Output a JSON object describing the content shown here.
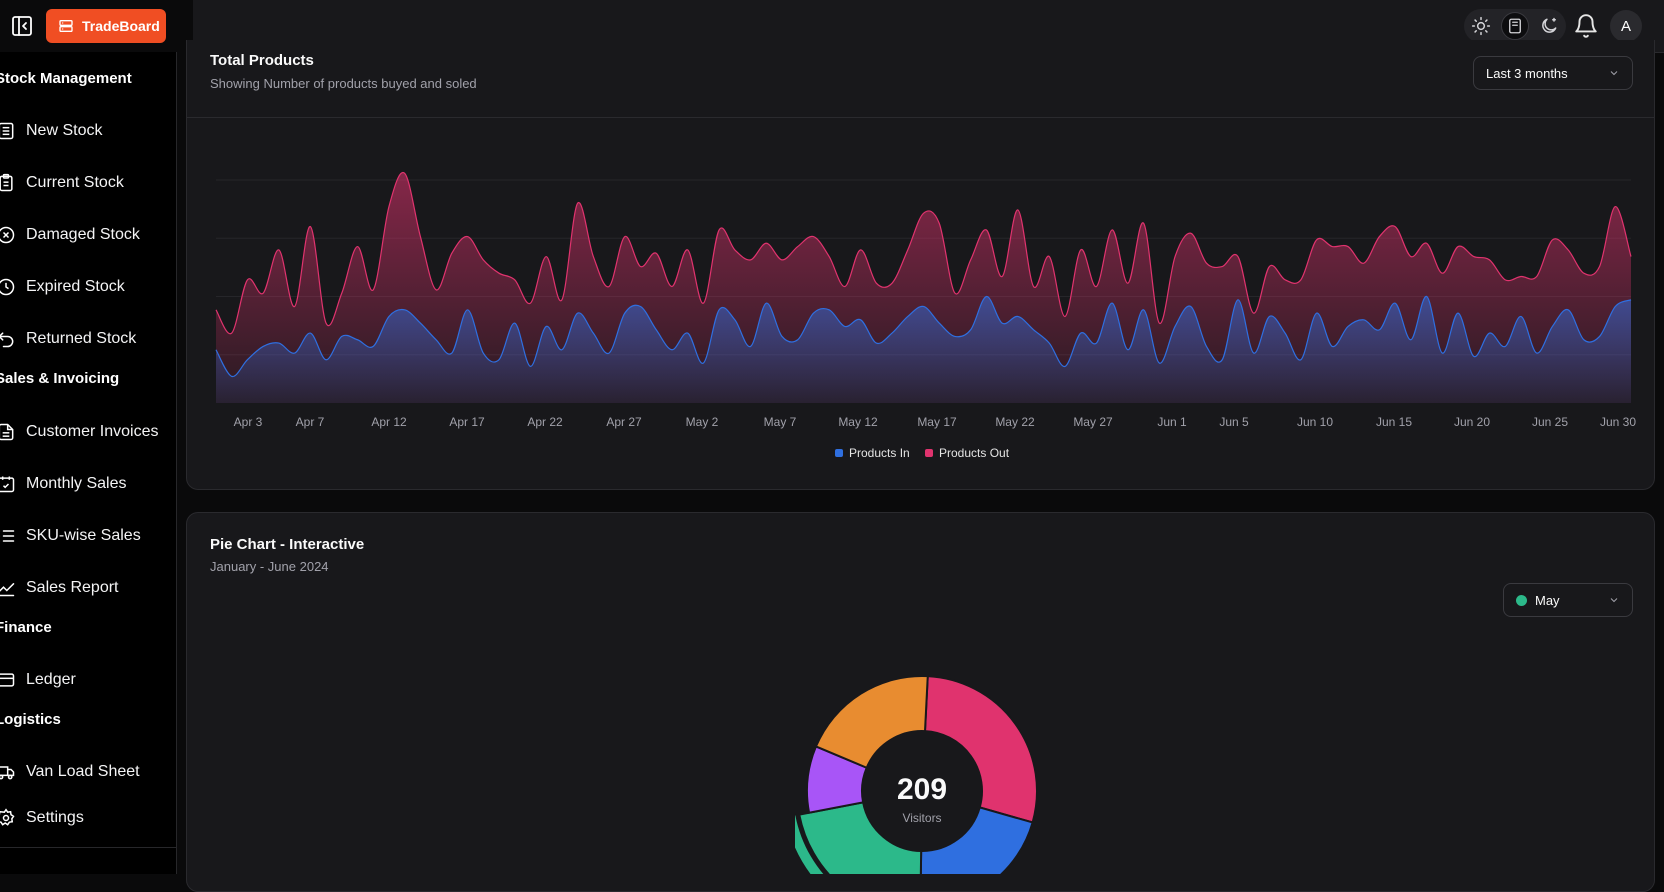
{
  "app": {
    "brand": "TradeBoard",
    "avatar_initial": "A"
  },
  "icons": [
    "sidebar-toggle-icon",
    "store-icon",
    "sun-icon",
    "book-icon",
    "moon-icon",
    "bell-icon",
    "receipt-icon",
    "clipboard-icon",
    "x-circle-icon",
    "clock-icon",
    "undo-icon",
    "file-icon",
    "calendar-check-icon",
    "list-icon",
    "trend-icon",
    "wallet-icon",
    "truck-icon",
    "gear-icon",
    "chevron-down-icon"
  ],
  "colors": {
    "brand": "#f04e23",
    "products_in": "#2f6fe0",
    "products_out": "#e0336e",
    "background": "#0a0a0b",
    "card": "#18181b"
  },
  "sidebar": {
    "sections": [
      {
        "heading": "Stock Management",
        "items": [
          "New Stock",
          "Current Stock",
          "Damaged Stock",
          "Expired Stock",
          "Returned Stock"
        ]
      },
      {
        "heading": "Sales & Invoicing",
        "items": [
          "Customer Invoices",
          "Monthly Sales",
          "SKU-wise Sales",
          "Sales Report"
        ]
      },
      {
        "heading": "Finance",
        "items": [
          "Ledger"
        ]
      },
      {
        "heading": "Logistics",
        "items": [
          "Van Load Sheet"
        ]
      }
    ],
    "settings": "Settings"
  },
  "area_card": {
    "title": "Total Products",
    "subtitle": "Showing Number of products buyed and soled",
    "range_select": "Last 3 months"
  },
  "pie_card": {
    "title": "Pie Chart - Interactive",
    "subtitle": "January - June 2024",
    "month_select": "May",
    "month_dot_color": "#2cb98a",
    "center_value": "209",
    "center_label": "Visitors"
  },
  "chart_data": [
    {
      "type": "area",
      "title": "Total Products",
      "x_ticks": [
        "Apr 3",
        "Apr 7",
        "Apr 12",
        "Apr 17",
        "Apr 22",
        "Apr 27",
        "May 2",
        "May 7",
        "May 12",
        "May 17",
        "May 22",
        "May 27",
        "Jun 1",
        "Jun 5",
        "Jun 10",
        "Jun 15",
        "Jun 20",
        "Jun 25",
        "Jun 30"
      ],
      "x_start": "2024-04-01",
      "x_end": "2024-06-30",
      "stacked": true,
      "grid": true,
      "legend_position": "bottom",
      "series": [
        {
          "name": "Products In",
          "color": "#2f6fe0",
          "values": [
            160,
            80,
            130,
            170,
            180,
            150,
            210,
            130,
            200,
            190,
            170,
            260,
            280,
            240,
            190,
            150,
            280,
            150,
            130,
            240,
            110,
            230,
            160,
            270,
            210,
            150,
            270,
            290,
            220,
            160,
            210,
            120,
            280,
            250,
            170,
            300,
            200,
            190,
            270,
            280,
            230,
            250,
            180,
            210,
            260,
            290,
            240,
            200,
            220,
            320,
            240,
            260,
            220,
            180,
            110,
            210,
            180,
            300,
            160,
            280,
            120,
            230,
            290,
            170,
            130,
            310,
            150,
            260,
            210,
            130,
            270,
            170,
            230,
            250,
            220,
            300,
            190,
            320,
            150,
            270,
            140,
            210,
            170,
            260,
            150,
            230,
            280,
            190,
            200,
            290,
            310
          ]
        },
        {
          "name": "Products Out",
          "color": "#e0336e",
          "values": [
            120,
            130,
            240,
            160,
            280,
            140,
            320,
            110,
            130,
            280,
            170,
            330,
            410,
            260,
            150,
            300,
            220,
            280,
            260,
            130,
            190,
            210,
            150,
            330,
            230,
            200,
            230,
            120,
            230,
            190,
            250,
            180,
            240,
            210,
            260,
            180,
            230,
            280,
            230,
            160,
            120,
            210,
            180,
            150,
            200,
            280,
            300,
            130,
            210,
            200,
            140,
            320,
            130,
            260,
            150,
            250,
            170,
            220,
            200,
            260,
            120,
            210,
            220,
            250,
            280,
            130,
            120,
            150,
            160,
            240,
            220,
            300,
            240,
            170,
            280,
            230,
            250,
            160,
            240,
            200,
            300,
            220,
            200,
            120,
            230,
            260,
            180,
            200,
            210,
            300,
            130
          ]
        }
      ],
      "ylim": [
        0,
        700
      ]
    },
    {
      "type": "pie",
      "title": "Pie Chart - Interactive",
      "slices": [
        {
          "label": "",
          "value": 275,
          "color": "#e0336e"
        },
        {
          "label": "",
          "value": 200,
          "color": "#2f6fe0"
        },
        {
          "label": "May",
          "value": 209,
          "color": "#2cb98a",
          "active": true
        },
        {
          "label": "",
          "value": 90,
          "color": "#a855f7"
        },
        {
          "label": "",
          "value": 187,
          "color": "#e88c30"
        }
      ],
      "center_value": 209,
      "center_label": "Visitors"
    }
  ]
}
